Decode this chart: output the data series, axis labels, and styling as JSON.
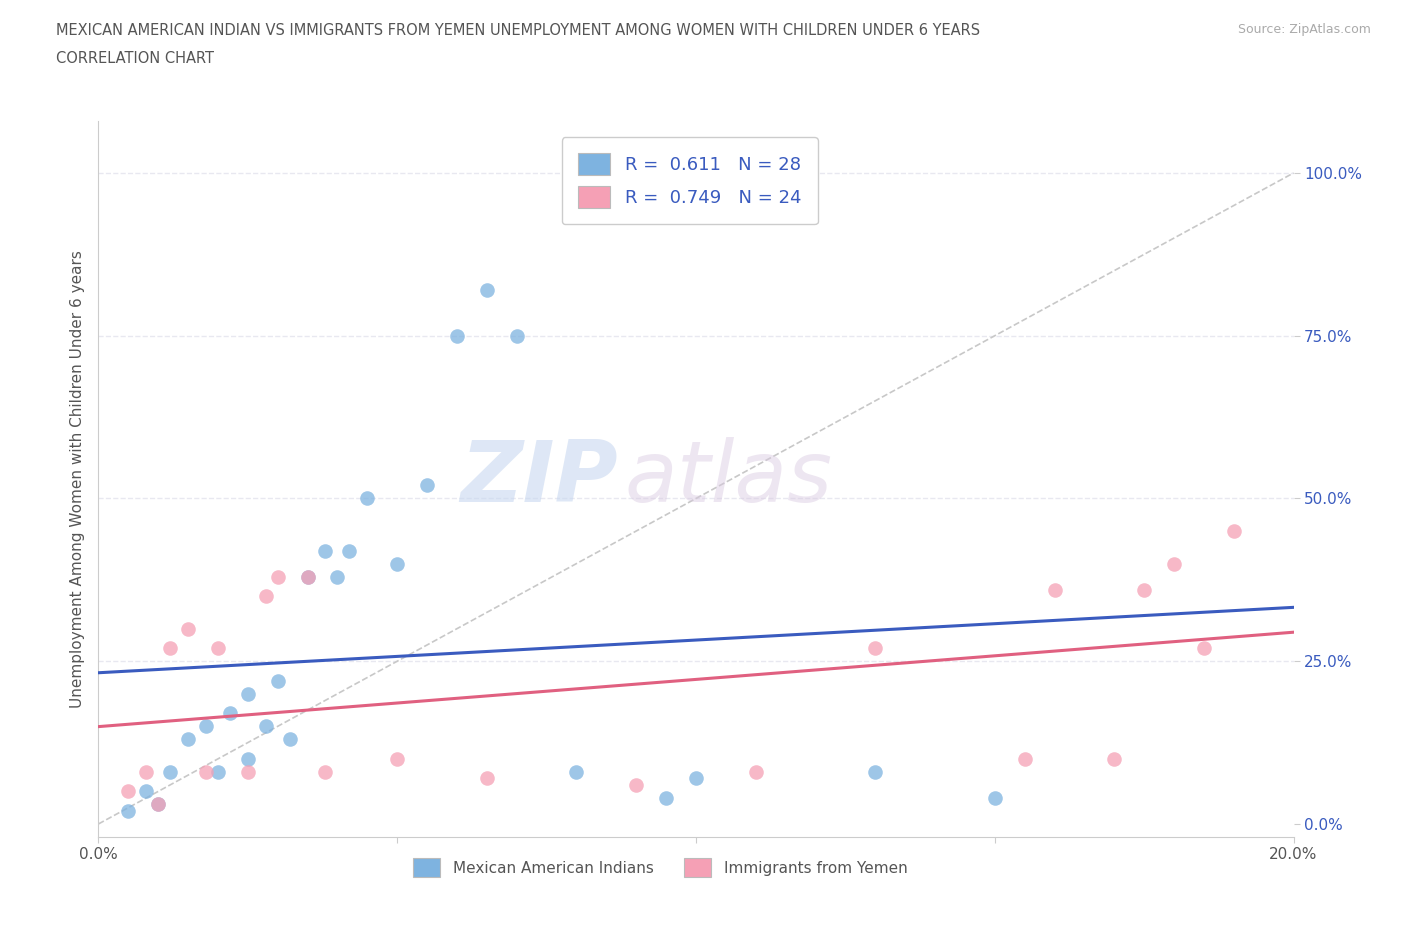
{
  "title_line1": "MEXICAN AMERICAN INDIAN VS IMMIGRANTS FROM YEMEN UNEMPLOYMENT AMONG WOMEN WITH CHILDREN UNDER 6 YEARS",
  "title_line2": "CORRELATION CHART",
  "source": "Source: ZipAtlas.com",
  "ylabel": "Unemployment Among Women with Children Under 6 years",
  "xlim": [
    0.0,
    0.2
  ],
  "ylim": [
    -0.02,
    1.08
  ],
  "ytick_labels": [
    "0.0%",
    "25.0%",
    "50.0%",
    "75.0%",
    "100.0%"
  ],
  "ytick_vals": [
    0.0,
    0.25,
    0.5,
    0.75,
    1.0
  ],
  "xtick_labels": [
    "0.0%",
    "",
    "",
    "",
    "20.0%"
  ],
  "xtick_vals": [
    0.0,
    0.05,
    0.1,
    0.15,
    0.2
  ],
  "blue_scatter_x": [
    0.005,
    0.008,
    0.01,
    0.012,
    0.015,
    0.018,
    0.02,
    0.022,
    0.025,
    0.025,
    0.028,
    0.03,
    0.032,
    0.035,
    0.038,
    0.04,
    0.042,
    0.045,
    0.05,
    0.055,
    0.06,
    0.065,
    0.07,
    0.08,
    0.095,
    0.1,
    0.13,
    0.15
  ],
  "blue_scatter_y": [
    0.02,
    0.05,
    0.03,
    0.08,
    0.13,
    0.15,
    0.08,
    0.17,
    0.1,
    0.2,
    0.15,
    0.22,
    0.13,
    0.38,
    0.42,
    0.38,
    0.42,
    0.5,
    0.4,
    0.52,
    0.75,
    0.82,
    0.75,
    0.08,
    0.04,
    0.07,
    0.08,
    0.04
  ],
  "pink_scatter_x": [
    0.005,
    0.008,
    0.01,
    0.012,
    0.015,
    0.018,
    0.02,
    0.025,
    0.028,
    0.03,
    0.035,
    0.038,
    0.05,
    0.065,
    0.09,
    0.11,
    0.13,
    0.155,
    0.16,
    0.17,
    0.175,
    0.18,
    0.185,
    0.19
  ],
  "pink_scatter_y": [
    0.05,
    0.08,
    0.03,
    0.27,
    0.3,
    0.08,
    0.27,
    0.08,
    0.35,
    0.38,
    0.38,
    0.08,
    0.1,
    0.07,
    0.06,
    0.08,
    0.27,
    0.1,
    0.36,
    0.1,
    0.36,
    0.4,
    0.27,
    0.45
  ],
  "blue_color": "#7eb3e0",
  "pink_color": "#f5a0b5",
  "blue_line_color": "#3a5bbf",
  "pink_line_color": "#e06080",
  "diagonal_color": "#c8c8c8",
  "R_blue": "0.611",
  "N_blue": "28",
  "R_pink": "0.749",
  "N_pink": "24",
  "legend_blue_label": "Mexican American Indians",
  "legend_pink_label": "Immigrants from Yemen",
  "watermark_zip": "ZIP",
  "watermark_atlas": "atlas",
  "background_color": "#ffffff",
  "grid_color": "#e8e8f0"
}
